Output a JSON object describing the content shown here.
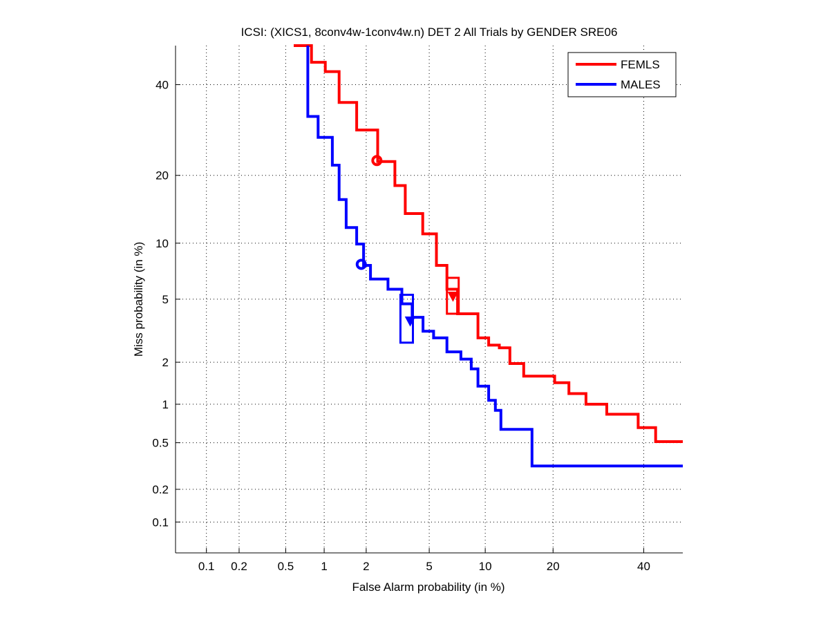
{
  "chart_data": {
    "type": "line",
    "subtype": "DET (normal-deviate scale)",
    "title": "ICSI: (XICS1, 8conv4w-1conv4w.n) DET 2 All Trials by GENDER SRE06",
    "xlabel": "False Alarm probability (in %)",
    "ylabel": "Miss probability (in %)",
    "xticks": [
      0.1,
      0.2,
      0.5,
      1,
      2,
      5,
      10,
      20,
      40
    ],
    "xtick_labels": [
      "0.1",
      "0.2",
      "0.5",
      "1",
      "2",
      "5",
      "10",
      "20",
      "40"
    ],
    "yticks": [
      0.1,
      0.2,
      0.5,
      1,
      2,
      5,
      10,
      20,
      40
    ],
    "ytick_labels": [
      "0.1",
      "0.2",
      "0.5",
      "1",
      "2",
      "5",
      "10",
      "20",
      "40"
    ],
    "xlim": [
      0.05,
      50
    ],
    "ylim": [
      0.05,
      50
    ],
    "grid": true,
    "legend_position": "top-right",
    "series": [
      {
        "name": "FEMLS",
        "color": "#ff0000",
        "x": [
          0.58,
          0.8,
          1.02,
          1.29,
          1.72,
          2.39,
          3.09,
          3.59,
          4.58,
          5.5,
          6.3,
          7.2,
          9.2,
          10.4,
          11.7,
          13.1,
          14.6,
          15.1,
          19.1,
          20.3,
          23.0,
          26.5,
          31.1,
          38.6,
          43.0,
          50.7
        ],
        "y": [
          50,
          45.7,
          43.3,
          35.6,
          29.2,
          22.6,
          18.2,
          13.8,
          11.1,
          7.7,
          5.7,
          4.1,
          2.9,
          2.6,
          2.5,
          1.96,
          1.96,
          1.6,
          1.6,
          1.44,
          1.2,
          1.0,
          0.84,
          0.66,
          0.51,
          0.51
        ],
        "min_dcf_point": {
          "x": 2.36,
          "y": 22.8,
          "marker": "circle"
        },
        "actual_dcf_point": {
          "x": 6.8,
          "y": 5.2,
          "marker": "triangle"
        },
        "confidence_box": {
          "x_range": [
            6.3,
            7.3
          ],
          "y_range": [
            4.1,
            6.6
          ]
        }
      },
      {
        "name": "MALES",
        "color": "#0000ff",
        "x": [
          0.75,
          0.75,
          0.9,
          1.15,
          1.29,
          1.45,
          1.72,
          1.92,
          2.14,
          2.79,
          3.42,
          3.96,
          4.6,
          5.3,
          6.3,
          7.5,
          8.5,
          9.2,
          10.4,
          11.2,
          11.9,
          15.6,
          16.4,
          50.7
        ],
        "y": [
          50,
          32.3,
          27.6,
          21.9,
          15.9,
          11.9,
          9.9,
          7.7,
          6.5,
          5.7,
          4.7,
          3.9,
          3.2,
          2.9,
          2.35,
          2.1,
          1.8,
          1.36,
          1.07,
          0.9,
          0.64,
          0.64,
          0.32,
          0.32
        ],
        "min_dcf_point": {
          "x": 1.85,
          "y": 7.8,
          "marker": "circle"
        },
        "actual_dcf_point": {
          "x": 3.85,
          "y": 3.7,
          "marker": "triangle"
        },
        "confidence_box": {
          "x_range": [
            3.35,
            4.0
          ],
          "y_range": [
            2.7,
            5.3
          ]
        }
      }
    ]
  }
}
